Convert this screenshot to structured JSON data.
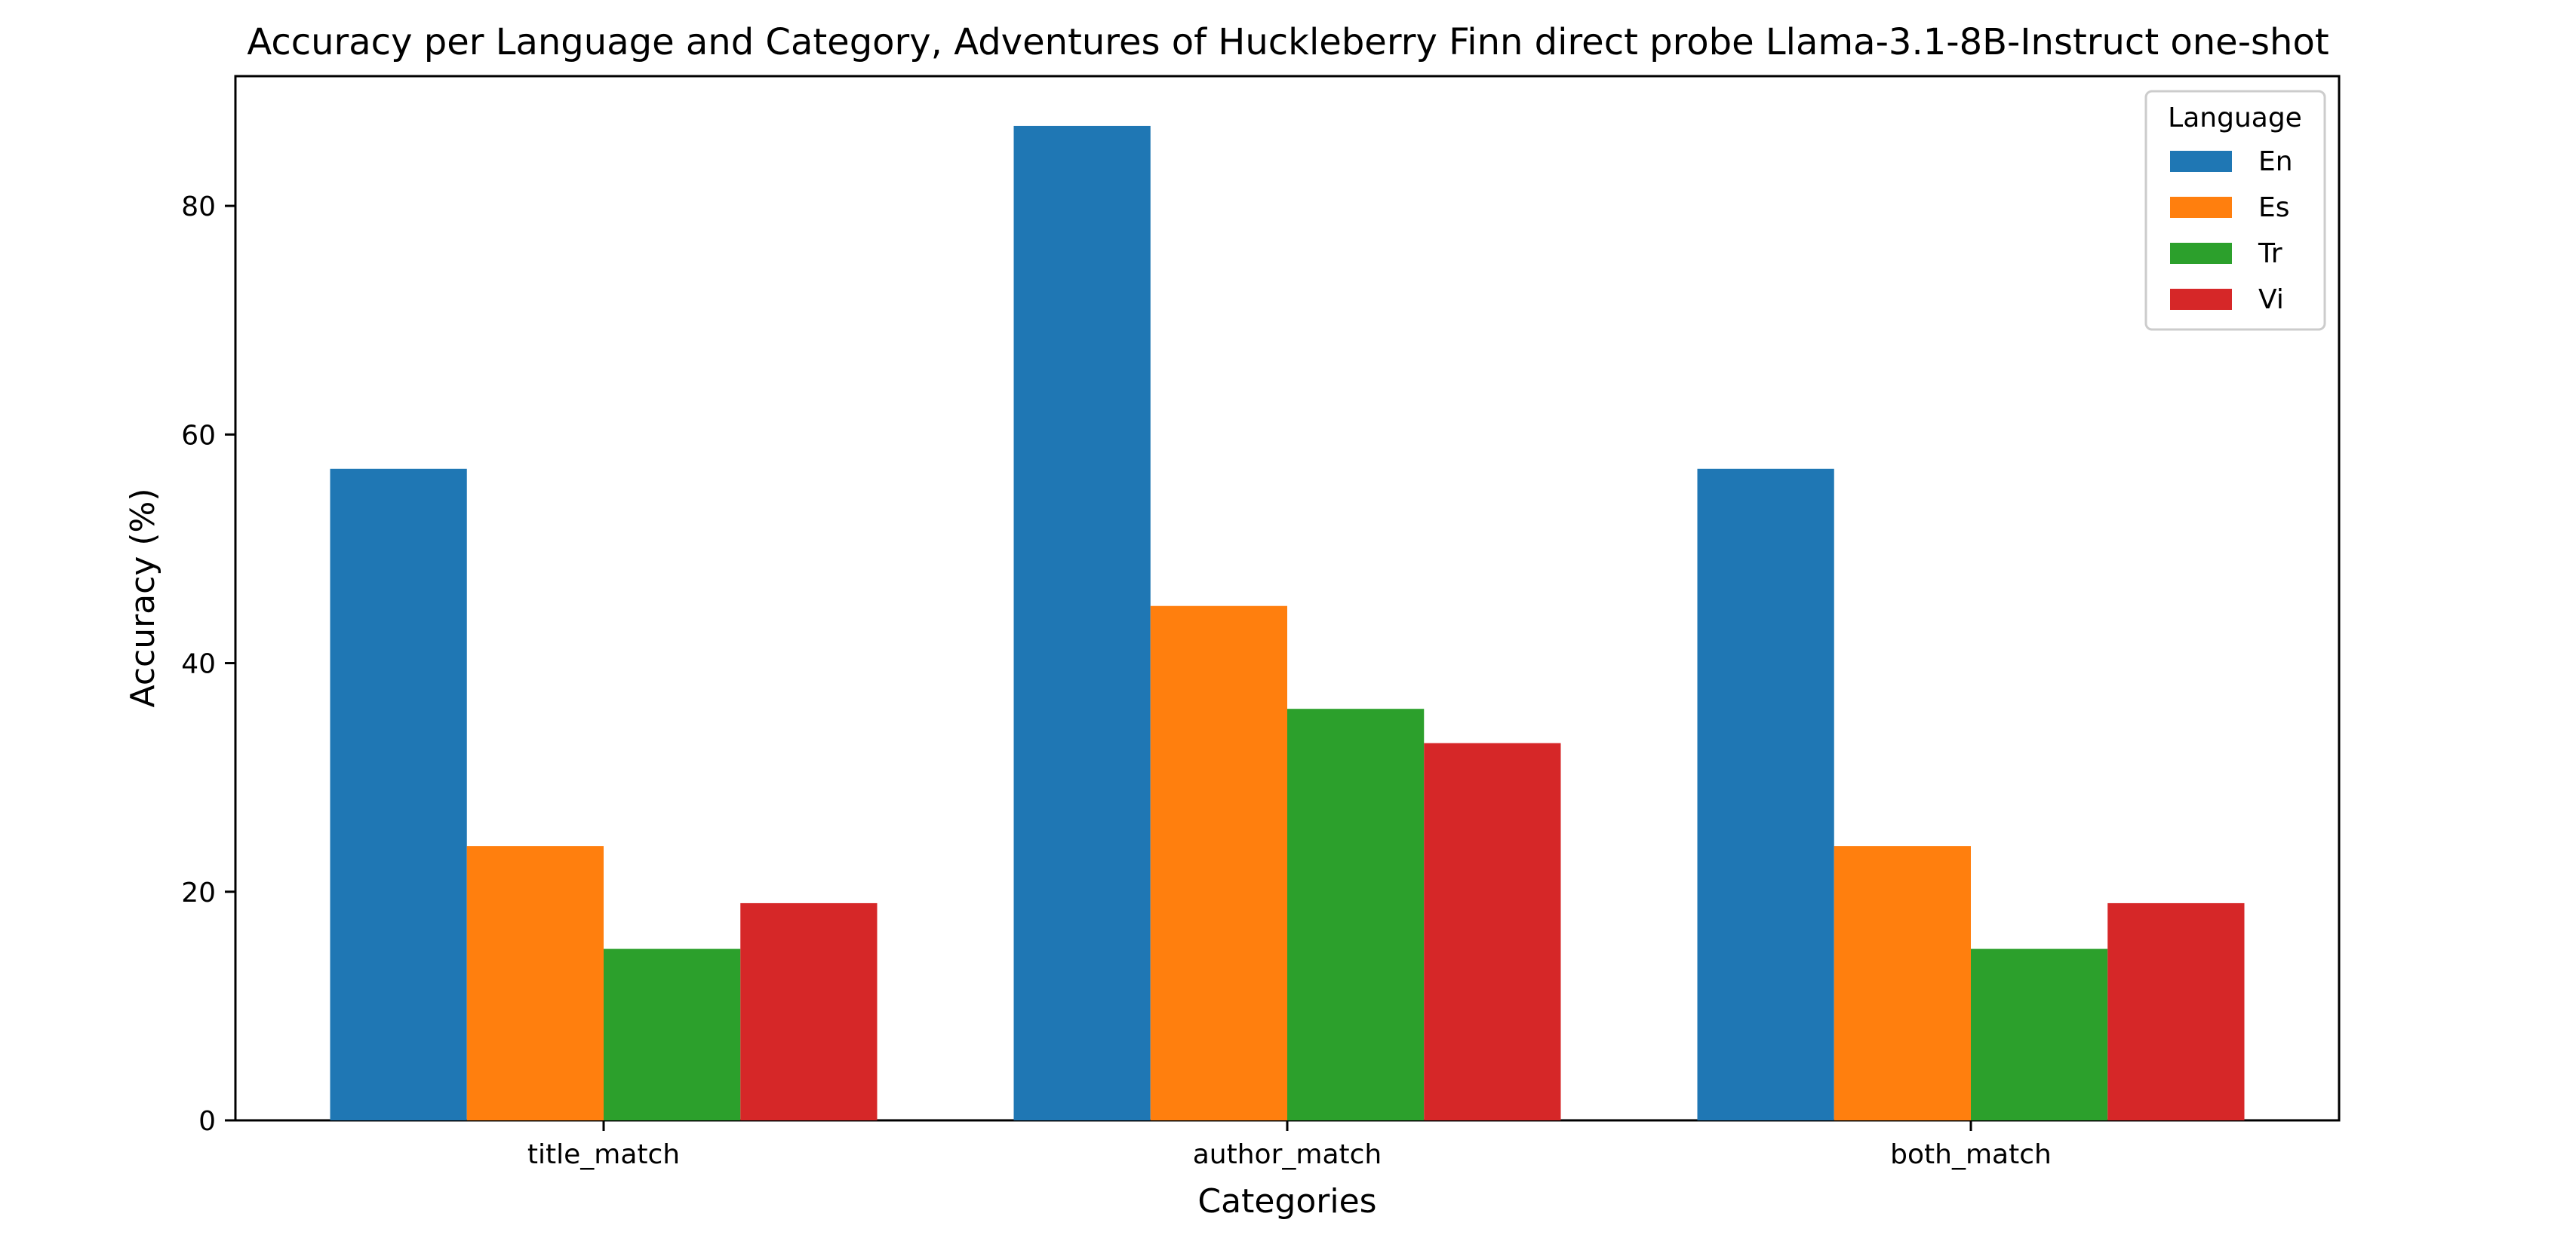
{
  "chart_data": {
    "type": "bar",
    "title": "Accuracy per Language and Category, Adventures of Huckleberry Finn direct probe Llama-3.1-8B-Instruct one-shot",
    "xlabel": "Categories",
    "ylabel": "Accuracy (%)",
    "categories": [
      "title_match",
      "author_match",
      "both_match"
    ],
    "ylim": [
      0,
      91.35
    ],
    "yticks": [
      0,
      20,
      40,
      60,
      80
    ],
    "grid": false,
    "legend": {
      "title": "Language",
      "placement": "top-right"
    },
    "series": [
      {
        "name": "En",
        "color": "#1f77b4",
        "values": [
          57,
          87,
          57
        ]
      },
      {
        "name": "Es",
        "color": "#ff7f0e",
        "values": [
          24,
          45,
          24
        ]
      },
      {
        "name": "Tr",
        "color": "#2ca02c",
        "values": [
          15,
          36,
          15
        ]
      },
      {
        "name": "Vi",
        "color": "#d62728",
        "values": [
          19,
          33,
          19
        ]
      }
    ]
  }
}
